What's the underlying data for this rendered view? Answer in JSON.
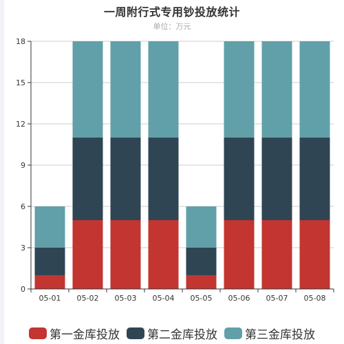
{
  "chart_data": {
    "type": "bar",
    "stacked": true,
    "title": "一周附行式专用钞投放统计",
    "subtitle": "单位：万元",
    "categories": [
      "05-01",
      "05-02",
      "05-03",
      "05-04",
      "05-05",
      "05-06",
      "05-07",
      "05-08"
    ],
    "series": [
      {
        "name": "第一金库投放",
        "color": "#c23531",
        "values": [
          1,
          5,
          5,
          5,
          1,
          5,
          5,
          5
        ]
      },
      {
        "name": "第二金库投放",
        "color": "#2f4554",
        "values": [
          2,
          6,
          6,
          6,
          2,
          6,
          6,
          6
        ]
      },
      {
        "name": "第三金库投放",
        "color": "#61a0a8",
        "values": [
          3,
          7,
          7,
          7,
          3,
          7,
          7,
          7
        ]
      }
    ],
    "ylim": [
      0,
      18
    ],
    "yticks": [
      0,
      3,
      6,
      9,
      12,
      15,
      18
    ],
    "grid": true,
    "legend_position": "bottom"
  }
}
